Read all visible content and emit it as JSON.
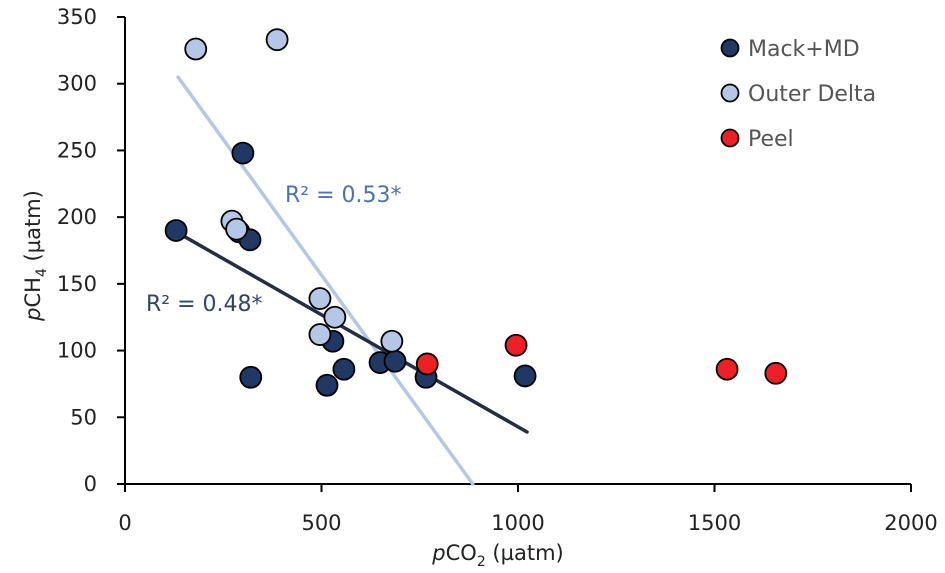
{
  "chart_data": {
    "type": "scatter",
    "title": "",
    "xlabel": "pCO2 (µatm)",
    "ylabel": "pCH4 (µatm)",
    "xlabel_parts": {
      "italic": "p",
      "main": "CO",
      "sub": "2",
      "unit": " (µatm)"
    },
    "ylabel_parts": {
      "italic": "p",
      "main": "CH",
      "sub": "4",
      "unit": " (µatm)"
    },
    "xlim": [
      0,
      2000
    ],
    "ylim": [
      0,
      350
    ],
    "xticks": [
      0,
      500,
      1000,
      1500,
      2000
    ],
    "yticks": [
      0,
      50,
      100,
      150,
      200,
      250,
      300,
      350
    ],
    "grid": false,
    "legend_position": "top-right",
    "series": [
      {
        "name": "Mack+MD",
        "color": "#1f3864",
        "points": [
          {
            "x": 130,
            "y": 190
          },
          {
            "x": 300,
            "y": 248
          },
          {
            "x": 290,
            "y": 189
          },
          {
            "x": 318,
            "y": 183
          },
          {
            "x": 320,
            "y": 80
          },
          {
            "x": 514,
            "y": 74
          },
          {
            "x": 529,
            "y": 107
          },
          {
            "x": 557,
            "y": 86
          },
          {
            "x": 649,
            "y": 91
          },
          {
            "x": 687,
            "y": 92
          },
          {
            "x": 766,
            "y": 80
          },
          {
            "x": 1018,
            "y": 81
          }
        ],
        "trendline": {
          "x": [
            130,
            1023
          ],
          "y": [
            189,
            39
          ],
          "color": "#222e42",
          "r2_label": "R² = 0.48*"
        }
      },
      {
        "name": "Outer Delta",
        "color": "#b4c7e7",
        "points": [
          {
            "x": 180,
            "y": 326
          },
          {
            "x": 387,
            "y": 333
          },
          {
            "x": 272,
            "y": 197
          },
          {
            "x": 284,
            "y": 191
          },
          {
            "x": 496,
            "y": 139
          },
          {
            "x": 534,
            "y": 125
          },
          {
            "x": 496,
            "y": 112
          },
          {
            "x": 679,
            "y": 107
          }
        ],
        "trendline": {
          "x": [
            135,
            885
          ],
          "y": [
            305,
            0
          ],
          "color": "#b4c7e7",
          "r2_label": "R² = 0.53*",
          "label_color": "#4a72b8"
        }
      },
      {
        "name": "Peel",
        "color": "#ee2026",
        "points": [
          {
            "x": 769,
            "y": 90
          },
          {
            "x": 995,
            "y": 104
          },
          {
            "x": 1532,
            "y": 86
          },
          {
            "x": 1656,
            "y": 83
          }
        ]
      }
    ]
  }
}
